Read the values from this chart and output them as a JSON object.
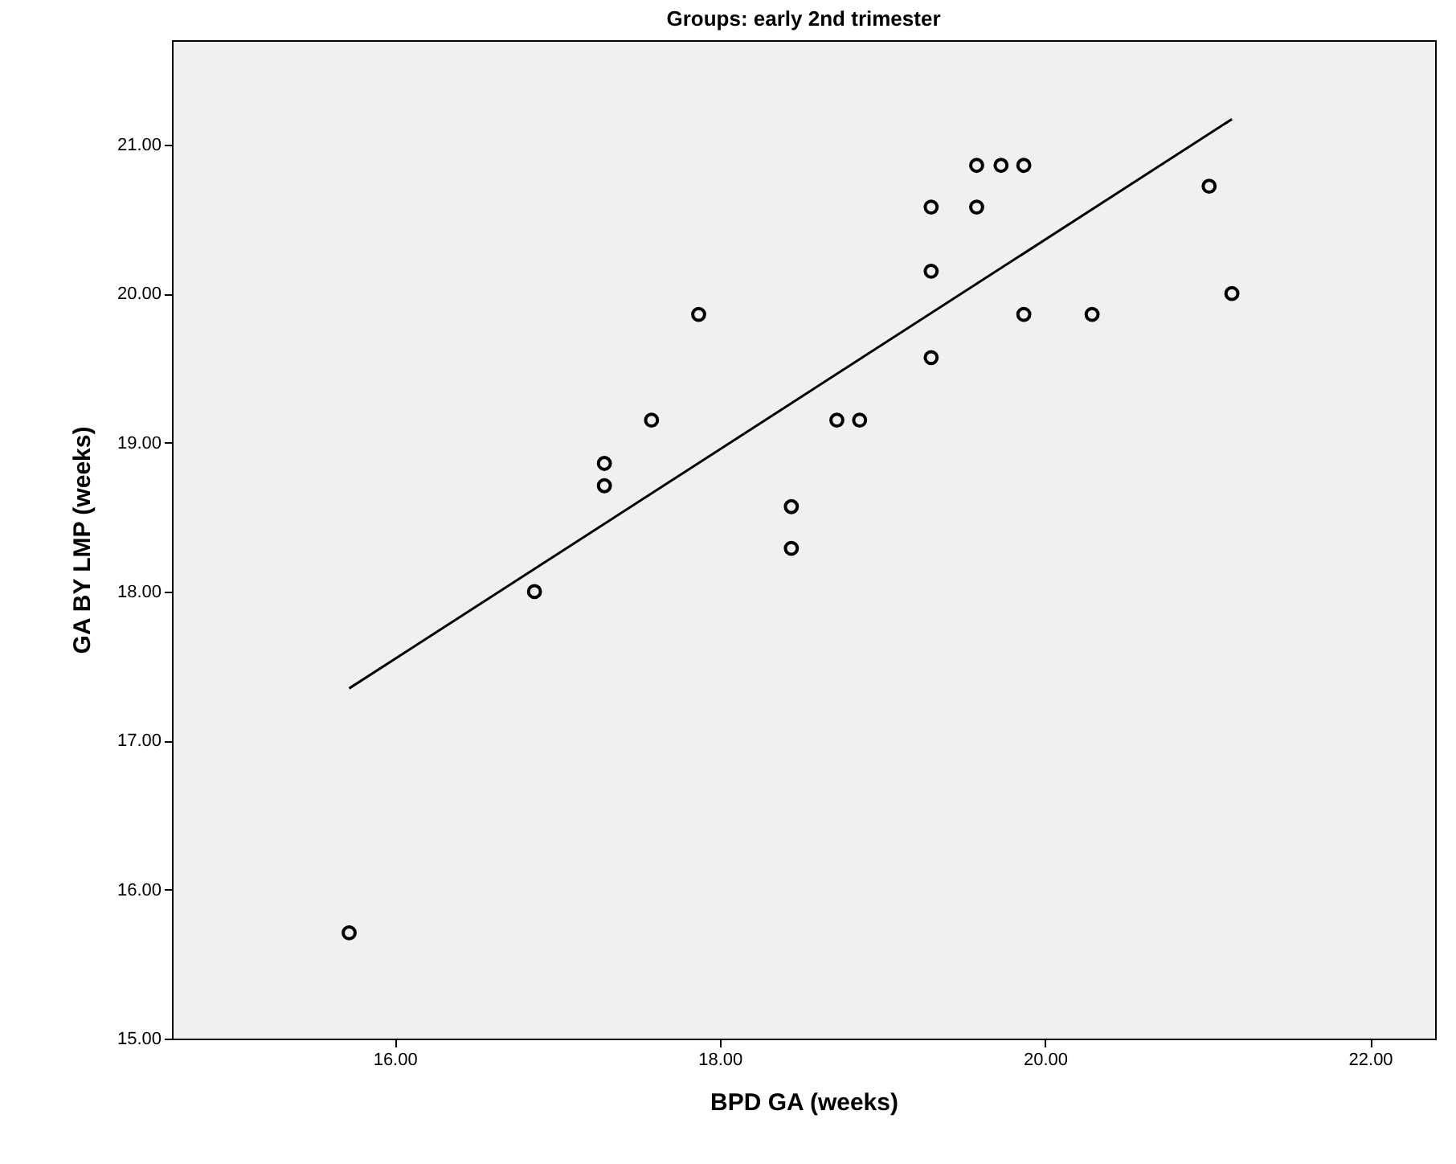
{
  "chart_data": {
    "type": "scatter",
    "title": "Groups: early 2nd trimester",
    "xlabel": "BPD GA (weeks)",
    "ylabel": "GA BY LMP (weeks)",
    "xlim": [
      14.63,
      22.4
    ],
    "xticks": [
      {
        "value": 16,
        "label": "16.00"
      },
      {
        "value": 18,
        "label": "18.00"
      },
      {
        "value": 20,
        "label": "20.00"
      },
      {
        "value": 22,
        "label": "22.00"
      }
    ],
    "ylim": [
      15,
      21.7
    ],
    "yticks": [
      {
        "value": 15,
        "label": "15.00"
      },
      {
        "value": 16,
        "label": "16.00"
      },
      {
        "value": 17,
        "label": "17.00"
      },
      {
        "value": 18,
        "label": "18.00"
      },
      {
        "value": 19,
        "label": "19.00"
      },
      {
        "value": 20,
        "label": "20.00"
      },
      {
        "value": 21,
        "label": "21.00"
      }
    ],
    "grid": false,
    "series": [
      {
        "marker": "circle",
        "color": "#000000",
        "x": [
          15.72,
          16.86,
          17.29,
          17.29,
          17.58,
          17.87,
          18.44,
          18.44,
          18.72,
          18.86,
          19.3,
          19.3,
          19.3,
          19.58,
          19.58,
          19.73,
          19.87,
          19.87,
          20.29,
          21.01,
          21.15
        ],
        "values": [
          15.71,
          18.0,
          18.86,
          18.71,
          19.15,
          19.86,
          18.57,
          18.29,
          19.15,
          19.15,
          20.58,
          20.15,
          19.57,
          20.86,
          20.58,
          20.86,
          20.86,
          19.86,
          19.86,
          20.72,
          20.0
        ]
      },
      {
        "type": "line",
        "color": "#000000",
        "line_style": "solid",
        "x": [
          15.72,
          21.15
        ],
        "values": [
          17.35,
          21.17
        ]
      }
    ]
  }
}
